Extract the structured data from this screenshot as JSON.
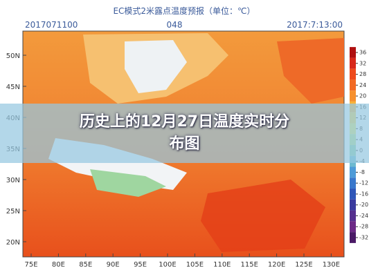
{
  "header": {
    "title": "EC模式2米露点温度预报（单位：℃）",
    "init_time": "2017071100",
    "step": "048",
    "valid_time": "2017:7:13:00"
  },
  "map": {
    "lat_labels": [
      "50N",
      "45N",
      "40N",
      "35N",
      "30N",
      "25N",
      "20N"
    ],
    "lon_labels": [
      "75E",
      "80E",
      "85E",
      "90E",
      "95E",
      "100E",
      "105E",
      "110E",
      "115E",
      "120E",
      "125E",
      "130E"
    ]
  },
  "colorbar": {
    "ticks": [
      36,
      32,
      28,
      24,
      20,
      16,
      12,
      8,
      4,
      0,
      -4,
      -8,
      -12,
      -16,
      -20,
      -24,
      -28,
      -32
    ],
    "colors": [
      "#b01010",
      "#d8281a",
      "#ee4a1c",
      "#f26a24",
      "#f6902e",
      "#f8b23a",
      "#f8d34c",
      "#e9ea6c",
      "#bfe28a",
      "#8fd1a6",
      "#6dbad0",
      "#4e9bd8",
      "#3a78cc",
      "#2f56b8",
      "#3a3a9e",
      "#55308e",
      "#6c2a86",
      "#4a1a66"
    ]
  },
  "overlay": {
    "title": "历史上的12月27日温度实时分布图"
  }
}
